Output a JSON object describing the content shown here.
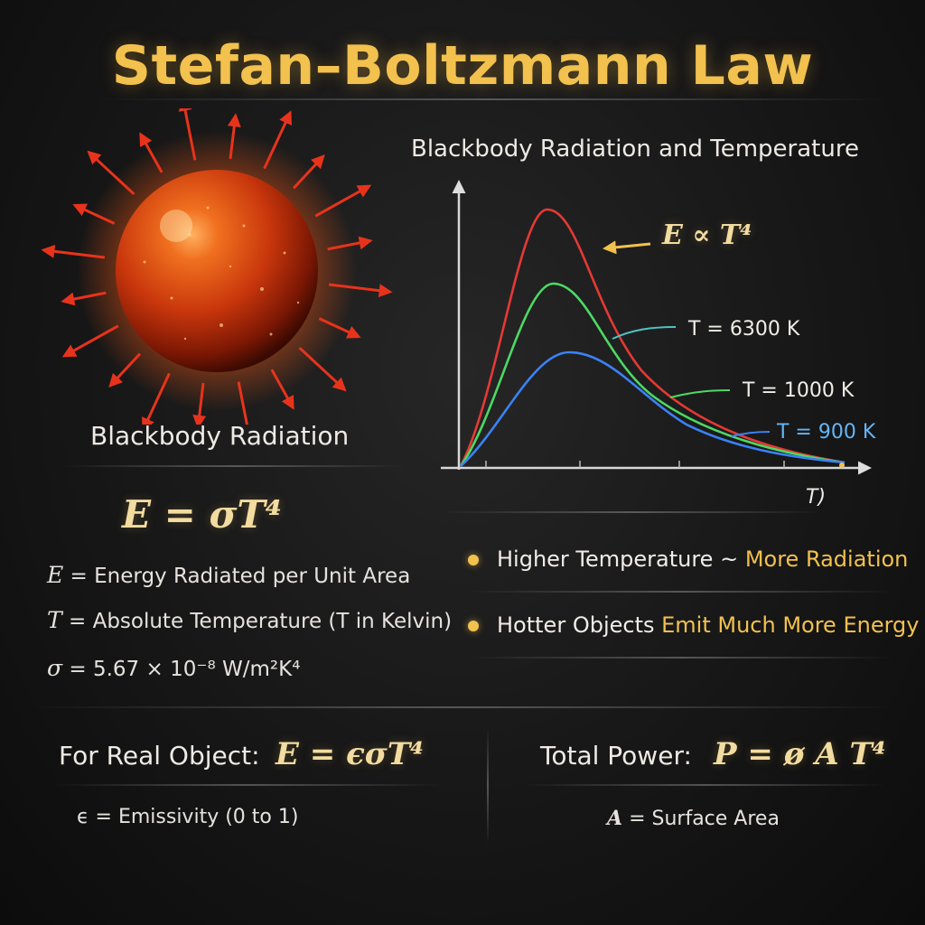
{
  "title": "Stefan–Boltzmann Law",
  "left": {
    "caption": "Blackbody Radiation",
    "main_formula": "E = σT⁴",
    "definitions": [
      {
        "symbol": "E",
        "text": " = Energy Radiated per Unit Area"
      },
      {
        "symbol": "T",
        "text": " = Absolute Temperature (T in Kelvin)"
      },
      {
        "symbol": "σ",
        "text": " = 5.67 × 10⁻⁸ W/m²K⁴"
      }
    ]
  },
  "chart": {
    "title": "Blackbody Radiation and Temperature",
    "annotation": "E ∝ T⁴",
    "x_axis_label": "T)",
    "curves": [
      {
        "label": "T = 6300 K",
        "color": "#e53935",
        "label_color": "#f0ede8",
        "leader_color": "#4fc3c3"
      },
      {
        "label": "T = 1000 K",
        "color": "#4cd964",
        "label_color": "#f0ede8",
        "leader_color": "#4cd964"
      },
      {
        "label": "T = 900 K",
        "color": "#3b82f6",
        "label_color": "#64b5f6",
        "leader_color": "#3b82f6"
      }
    ]
  },
  "bullets": [
    {
      "lead": "Higher Temperature ~ ",
      "highlight": "More Radiation"
    },
    {
      "lead": "Hotter Objects ",
      "highlight": "Emit Much More Energy"
    }
  ],
  "bottom": {
    "real_label": "For Real Object:",
    "real_formula": "E = ϵσT⁴",
    "real_def": "ϵ = Emissivity (0 to 1)",
    "power_label": "Total Power:",
    "power_formula": "P = ø A T⁴",
    "power_def_symbol": "A",
    "power_def": " = Surface Area"
  },
  "colors": {
    "accent": "#f2c14e",
    "sun": "#e8571c",
    "ray": "#e8331c"
  }
}
